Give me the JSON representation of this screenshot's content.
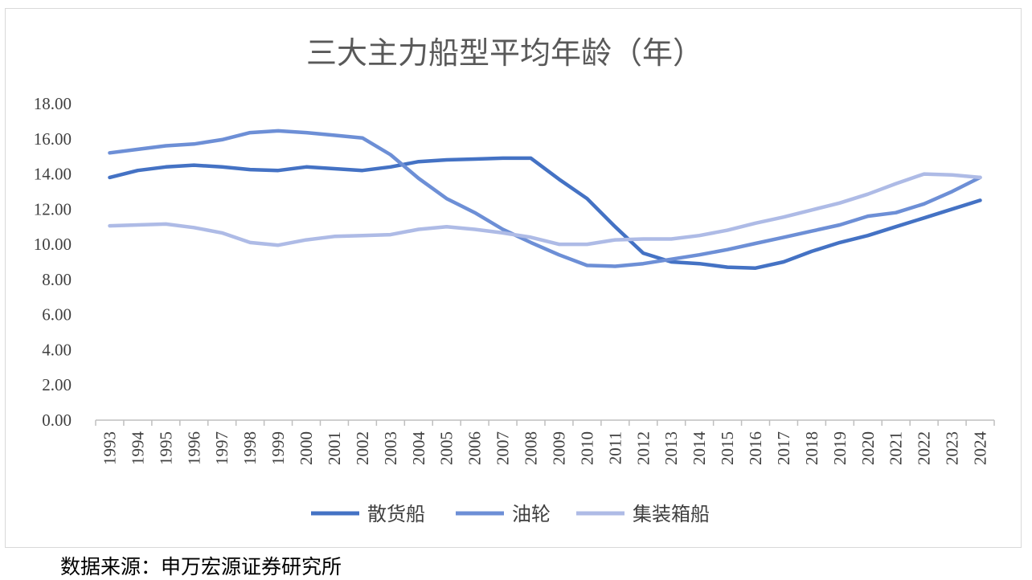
{
  "chart_data": {
    "type": "line",
    "title": "三大主力船型平均年龄（年）",
    "xlabel": "",
    "ylabel": "",
    "ylim": [
      0,
      18
    ],
    "yticks": [
      "0.00",
      "2.00",
      "4.00",
      "6.00",
      "8.00",
      "10.00",
      "12.00",
      "14.00",
      "16.00",
      "18.00"
    ],
    "grid": false,
    "legend": "bottom",
    "categories": [
      "1993",
      "1994",
      "1995",
      "1996",
      "1997",
      "1998",
      "1999",
      "2000",
      "2001",
      "2002",
      "2003",
      "2004",
      "2005",
      "2006",
      "2007",
      "2008",
      "2009",
      "2010",
      "2011",
      "2012",
      "2013",
      "2014",
      "2015",
      "2016",
      "2017",
      "2018",
      "2019",
      "2020",
      "2021",
      "2022",
      "2023",
      "2024"
    ],
    "series": [
      {
        "name": "散货船",
        "color": "#4472c4",
        "values": [
          13.8,
          14.2,
          14.4,
          14.5,
          14.4,
          14.25,
          14.2,
          14.4,
          14.3,
          14.2,
          14.4,
          14.7,
          14.8,
          14.85,
          14.9,
          14.9,
          13.7,
          12.6,
          11.0,
          9.5,
          9.0,
          8.9,
          8.7,
          8.65,
          9.0,
          9.6,
          10.1,
          10.5,
          11.0,
          11.5,
          12.0,
          12.5
        ],
        "values_check": null
      },
      {
        "name": "油轮",
        "color": "#6d8fd6",
        "values": [
          15.2,
          15.4,
          15.6,
          15.7,
          15.95,
          16.35,
          16.45,
          16.35,
          16.2,
          16.05,
          15.1,
          13.75,
          12.6,
          11.8,
          10.85,
          10.1,
          9.4,
          8.8,
          8.75,
          8.9,
          9.15,
          9.4,
          9.7,
          10.05,
          10.4,
          10.75,
          11.1,
          11.6,
          11.8,
          12.3,
          13.0,
          13.8
        ],
        "values_check": null
      },
      {
        "name": "集装箱船",
        "color": "#aebbe6",
        "values": [
          11.05,
          11.1,
          11.15,
          10.95,
          10.65,
          10.1,
          9.95,
          10.25,
          10.45,
          10.5,
          10.55,
          10.85,
          11.0,
          10.85,
          10.65,
          10.4,
          10.0,
          10.0,
          10.25,
          10.3,
          10.3,
          10.5,
          10.8,
          11.2,
          11.55,
          11.95,
          12.35,
          12.85,
          13.45,
          14.0,
          13.95,
          13.8
        ],
        "values_check": null
      }
    ]
  },
  "source_note": "数据来源：申万宏源证券研究所"
}
